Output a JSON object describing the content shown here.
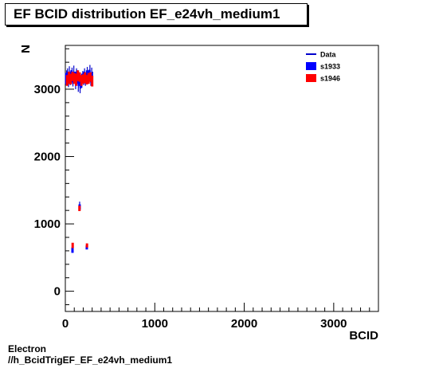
{
  "title": "EF BCID distribution EF_e24vh_medium1",
  "footer": {
    "line1": "Electron",
    "line2": "//h_BcidTrigEF_EF_e24vh_medium1"
  },
  "colors": {
    "data": "#0000cc",
    "s1933": "#0000ff",
    "s1946": "#ff0000",
    "frame": "#000000"
  },
  "chart_data": {
    "type": "scatter",
    "title": "EF BCID distribution EF_e24vh_medium1",
    "xlabel": "BCID",
    "ylabel": "N",
    "xlim": [
      0,
      3500
    ],
    "ylim": [
      -300,
      3650
    ],
    "xticks": [
      0,
      1000,
      2000,
      3000
    ],
    "yticks": [
      0,
      1000,
      2000,
      3000
    ],
    "xtick_labels": [
      "0",
      "1000",
      "2000",
      "3000"
    ],
    "ytick_labels": [
      "0",
      "1000",
      "2000",
      "3000"
    ],
    "grid": false,
    "legend_position": "top-right",
    "series": [
      {
        "name": "Data",
        "kind": "line",
        "points": [
          [
            5,
            3150
          ],
          [
            15,
            3180
          ],
          [
            25,
            3200
          ],
          [
            35,
            3120
          ],
          [
            45,
            3220
          ],
          [
            55,
            3160
          ],
          [
            65,
            3190
          ],
          [
            75,
            3210
          ],
          [
            85,
            3140
          ],
          [
            95,
            3230
          ],
          [
            105,
            3170
          ],
          [
            115,
            3100
          ],
          [
            125,
            3200
          ],
          [
            135,
            3180
          ],
          [
            145,
            3050
          ],
          [
            155,
            3150
          ],
          [
            165,
            3020
          ],
          [
            175,
            3100
          ],
          [
            185,
            3120
          ],
          [
            195,
            3180
          ],
          [
            205,
            3160
          ],
          [
            215,
            3200
          ],
          [
            225,
            3140
          ],
          [
            235,
            3180
          ],
          [
            245,
            3220
          ],
          [
            255,
            3170
          ],
          [
            265,
            3190
          ],
          [
            275,
            3240
          ],
          [
            285,
            3150
          ],
          [
            295,
            3210
          ],
          [
            305,
            3170
          ],
          [
            160,
            1280
          ],
          [
            80,
            650
          ],
          [
            240,
            670
          ]
        ],
        "errors": [
          [
            5,
            90
          ],
          [
            15,
            100
          ],
          [
            25,
            110
          ],
          [
            35,
            90
          ],
          [
            45,
            120
          ],
          [
            55,
            100
          ],
          [
            65,
            90
          ],
          [
            75,
            110
          ],
          [
            85,
            100
          ],
          [
            95,
            120
          ],
          [
            105,
            90
          ],
          [
            115,
            100
          ],
          [
            125,
            110
          ],
          [
            135,
            100
          ],
          [
            145,
            90
          ],
          [
            155,
            100
          ],
          [
            165,
            80
          ],
          [
            175,
            90
          ],
          [
            185,
            100
          ],
          [
            195,
            90
          ],
          [
            205,
            100
          ],
          [
            215,
            110
          ],
          [
            225,
            90
          ],
          [
            235,
            100
          ],
          [
            245,
            110
          ],
          [
            255,
            90
          ],
          [
            265,
            100
          ],
          [
            275,
            120
          ],
          [
            285,
            100
          ],
          [
            295,
            110
          ],
          [
            305,
            90
          ],
          [
            160,
            50
          ],
          [
            80,
            60
          ],
          [
            240,
            40
          ]
        ]
      },
      {
        "name": "s1933",
        "kind": "box",
        "points": [
          [
            10,
            3160
          ],
          [
            30,
            3190
          ],
          [
            50,
            3170
          ],
          [
            70,
            3200
          ],
          [
            90,
            3150
          ],
          [
            110,
            3180
          ],
          [
            130,
            3170
          ],
          [
            150,
            3120
          ],
          [
            170,
            3100
          ],
          [
            190,
            3160
          ],
          [
            210,
            3180
          ],
          [
            230,
            3150
          ],
          [
            250,
            3190
          ],
          [
            270,
            3200
          ],
          [
            290,
            3170
          ],
          [
            160,
            1250
          ],
          [
            80,
            610
          ],
          [
            240,
            650
          ]
        ],
        "errors": [
          [
            10,
            80
          ],
          [
            30,
            70
          ],
          [
            50,
            90
          ],
          [
            70,
            80
          ],
          [
            90,
            70
          ],
          [
            110,
            80
          ],
          [
            130,
            90
          ],
          [
            150,
            70
          ],
          [
            170,
            80
          ],
          [
            190,
            70
          ],
          [
            210,
            80
          ],
          [
            230,
            70
          ],
          [
            250,
            90
          ],
          [
            270,
            80
          ],
          [
            290,
            70
          ],
          [
            160,
            40
          ],
          [
            80,
            40
          ],
          [
            240,
            30
          ]
        ]
      },
      {
        "name": "s1946",
        "kind": "box",
        "points": [
          [
            20,
            3130
          ],
          [
            40,
            3170
          ],
          [
            60,
            3150
          ],
          [
            80,
            3190
          ],
          [
            100,
            3160
          ],
          [
            120,
            3140
          ],
          [
            140,
            3200
          ],
          [
            160,
            3180
          ],
          [
            180,
            3130
          ],
          [
            200,
            3150
          ],
          [
            220,
            3170
          ],
          [
            240,
            3140
          ],
          [
            260,
            3160
          ],
          [
            280,
            3180
          ],
          [
            300,
            3120
          ],
          [
            158,
            1230
          ],
          [
            82,
            680
          ],
          [
            242,
            680
          ]
        ],
        "errors": [
          [
            20,
            80
          ],
          [
            40,
            90
          ],
          [
            60,
            80
          ],
          [
            80,
            70
          ],
          [
            100,
            80
          ],
          [
            120,
            90
          ],
          [
            140,
            80
          ],
          [
            160,
            70
          ],
          [
            180,
            80
          ],
          [
            200,
            70
          ],
          [
            220,
            80
          ],
          [
            240,
            70
          ],
          [
            260,
            80
          ],
          [
            280,
            70
          ],
          [
            300,
            80
          ],
          [
            158,
            40
          ],
          [
            82,
            40
          ],
          [
            242,
            30
          ]
        ]
      }
    ]
  }
}
